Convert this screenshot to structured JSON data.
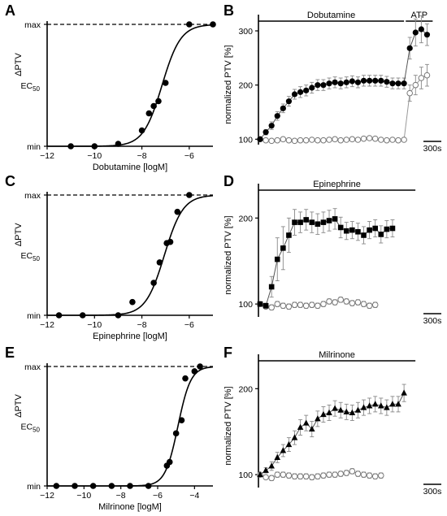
{
  "chart_data": [
    {
      "panel": "A",
      "type": "scatter",
      "xlabel": "Dobutamine [logM]",
      "ylabel": "ΔPTV",
      "xlim": [
        -12,
        -5
      ],
      "xticks": [
        -12,
        -10,
        -8,
        -6
      ],
      "yticks_text": [
        "min",
        "EC50",
        "max"
      ],
      "ec50_label": {
        "main": "EC",
        "sub": "50"
      },
      "fit": {
        "logEC50": -7.15,
        "hill": 1.1
      },
      "points": [
        {
          "x": -11.0,
          "y": 0.0
        },
        {
          "x": -10.0,
          "y": 0.0
        },
        {
          "x": -9.0,
          "y": 0.02
        },
        {
          "x": -8.0,
          "y": 0.13
        },
        {
          "x": -7.7,
          "y": 0.27
        },
        {
          "x": -7.5,
          "y": 0.33
        },
        {
          "x": -7.3,
          "y": 0.37
        },
        {
          "x": -7.0,
          "y": 0.52
        },
        {
          "x": -6.0,
          "y": 1.0
        },
        {
          "x": -5.0,
          "y": 1.0
        }
      ]
    },
    {
      "panel": "B",
      "type": "line",
      "ylabel": "normalized PTV [%]",
      "ylim": [
        90,
        330
      ],
      "yticks": [
        100,
        200,
        300
      ],
      "bars": [
        {
          "label": "Dobutamine",
          "from": 0,
          "to": 25
        },
        {
          "label": "ATP",
          "from": 25.3,
          "to": 28
        }
      ],
      "scalebar": "300s",
      "series": [
        {
          "name": "",
          "marker": "filled-circle",
          "values": [
            100,
            113,
            125,
            143,
            157,
            170,
            183,
            187,
            190,
            195,
            200,
            200,
            203,
            205,
            203,
            205,
            207,
            205,
            208,
            208,
            208,
            208,
            206,
            203,
            203,
            203,
            268,
            297,
            303,
            293
          ],
          "err": [
            3,
            5,
            7,
            8,
            8,
            9,
            9,
            10,
            10,
            10,
            10,
            10,
            10,
            10,
            10,
            10,
            10,
            10,
            10,
            10,
            10,
            10,
            10,
            10,
            10,
            10,
            20,
            25,
            25,
            20
          ]
        },
        {
          "name": "",
          "marker": "open-circle",
          "values": [
            100,
            98,
            97,
            98,
            100,
            98,
            97,
            98,
            98,
            99,
            98,
            98,
            99,
            100,
            98,
            99,
            100,
            99,
            101,
            102,
            101,
            99,
            98,
            99,
            98,
            99,
            185,
            200,
            213,
            218
          ],
          "err": [
            2,
            2,
            2,
            2,
            2,
            2,
            2,
            2,
            2,
            2,
            2,
            2,
            2,
            2,
            2,
            2,
            2,
            2,
            3,
            3,
            3,
            2,
            2,
            2,
            2,
            2,
            15,
            18,
            20,
            20
          ]
        }
      ]
    },
    {
      "panel": "C",
      "type": "scatter",
      "xlabel": "Epinephrine [logM]",
      "ylabel": "ΔPTV",
      "xlim": [
        -12,
        -5
      ],
      "xticks": [
        -12,
        -10,
        -8,
        -6
      ],
      "yticks_text": [
        "min",
        "EC50",
        "max"
      ],
      "ec50_label": {
        "main": "EC",
        "sub": "50"
      },
      "fit": {
        "logEC50": -7.05,
        "hill": 1.1
      },
      "points": [
        {
          "x": -11.5,
          "y": 0.0
        },
        {
          "x": -10.5,
          "y": 0.0
        },
        {
          "x": -9.0,
          "y": 0.0
        },
        {
          "x": -8.4,
          "y": 0.11
        },
        {
          "x": -7.5,
          "y": 0.27
        },
        {
          "x": -7.25,
          "y": 0.44
        },
        {
          "x": -6.95,
          "y": 0.6
        },
        {
          "x": -6.8,
          "y": 0.61
        },
        {
          "x": -6.5,
          "y": 0.86
        },
        {
          "x": -6.0,
          "y": 1.0
        }
      ]
    },
    {
      "panel": "D",
      "type": "line",
      "ylabel": "normalized PTV [%]",
      "ylim": [
        85,
        240
      ],
      "yticks": [
        100,
        200
      ],
      "bars": [
        {
          "label": "Epinephrine",
          "from": 0,
          "to": 25
        }
      ],
      "scalebar": "300s",
      "series": [
        {
          "name": "",
          "marker": "filled-square",
          "values": [
            100,
            98,
            120,
            152,
            165,
            180,
            195,
            195,
            198,
            195,
            193,
            195,
            197,
            199,
            189,
            185,
            186,
            184,
            180,
            186,
            188,
            181,
            187,
            188
          ],
          "err": [
            2,
            3,
            12,
            25,
            25,
            20,
            15,
            12,
            12,
            12,
            12,
            12,
            12,
            12,
            12,
            10,
            10,
            10,
            10,
            10,
            10,
            10,
            10,
            10
          ]
        },
        {
          "name": "",
          "marker": "open-circle",
          "values": [
            100,
            97,
            96,
            100,
            98,
            97,
            99,
            99,
            98,
            99,
            98,
            100,
            103,
            102,
            105,
            103,
            101,
            102,
            100,
            98,
            99
          ],
          "err": [
            2,
            2,
            3,
            3,
            3,
            3,
            3,
            3,
            3,
            3,
            3,
            3,
            3,
            3,
            3,
            3,
            3,
            3,
            3,
            3,
            3
          ]
        }
      ]
    },
    {
      "panel": "E",
      "type": "scatter",
      "xlabel": "Milrinone [logM]",
      "ylabel": "ΔPTV",
      "xlim": [
        -12,
        -3
      ],
      "xticks": [
        -12,
        -10,
        -8,
        -6,
        -4
      ],
      "yticks_text": [
        "min",
        "EC50",
        "max"
      ],
      "ec50_label": {
        "main": "EC",
        "sub": "50"
      },
      "fit": {
        "logEC50": -4.9,
        "hill": 1.25
      },
      "points": [
        {
          "x": -11.5,
          "y": 0.0
        },
        {
          "x": -10.5,
          "y": 0.0
        },
        {
          "x": -9.5,
          "y": 0.0
        },
        {
          "x": -8.5,
          "y": 0.0
        },
        {
          "x": -7.5,
          "y": 0.0
        },
        {
          "x": -6.5,
          "y": 0.0
        },
        {
          "x": -5.5,
          "y": 0.17
        },
        {
          "x": -5.35,
          "y": 0.2
        },
        {
          "x": -5.0,
          "y": 0.44
        },
        {
          "x": -4.7,
          "y": 0.55
        },
        {
          "x": -4.5,
          "y": 0.9
        },
        {
          "x": -4.0,
          "y": 0.96
        },
        {
          "x": -3.7,
          "y": 1.0
        }
      ]
    },
    {
      "panel": "F",
      "type": "line",
      "ylabel": "normalized PTV [%]",
      "ylim": [
        85,
        240
      ],
      "yticks": [
        100,
        200
      ],
      "bars": [
        {
          "label": "Milrinone",
          "from": 0,
          "to": 25
        }
      ],
      "scalebar": "300s",
      "series": [
        {
          "name": "",
          "marker": "filled-triangle",
          "values": [
            100,
            105,
            110,
            120,
            128,
            135,
            143,
            155,
            160,
            153,
            165,
            170,
            172,
            177,
            175,
            173,
            172,
            175,
            178,
            180,
            182,
            180,
            178,
            182,
            182,
            195
          ],
          "err": [
            2,
            3,
            5,
            6,
            7,
            8,
            8,
            9,
            9,
            9,
            9,
            9,
            9,
            9,
            9,
            9,
            9,
            9,
            9,
            9,
            9,
            9,
            9,
            9,
            9,
            10
          ]
        },
        {
          "name": "",
          "marker": "open-circle",
          "values": [
            100,
            97,
            96,
            100,
            100,
            99,
            98,
            98,
            98,
            97,
            98,
            99,
            100,
            100,
            101,
            102,
            104,
            101,
            100,
            99,
            98,
            99
          ],
          "err": [
            2,
            2,
            3,
            3,
            3,
            3,
            3,
            3,
            3,
            3,
            3,
            3,
            3,
            3,
            3,
            3,
            3,
            3,
            3,
            3,
            3,
            3
          ]
        }
      ]
    }
  ]
}
